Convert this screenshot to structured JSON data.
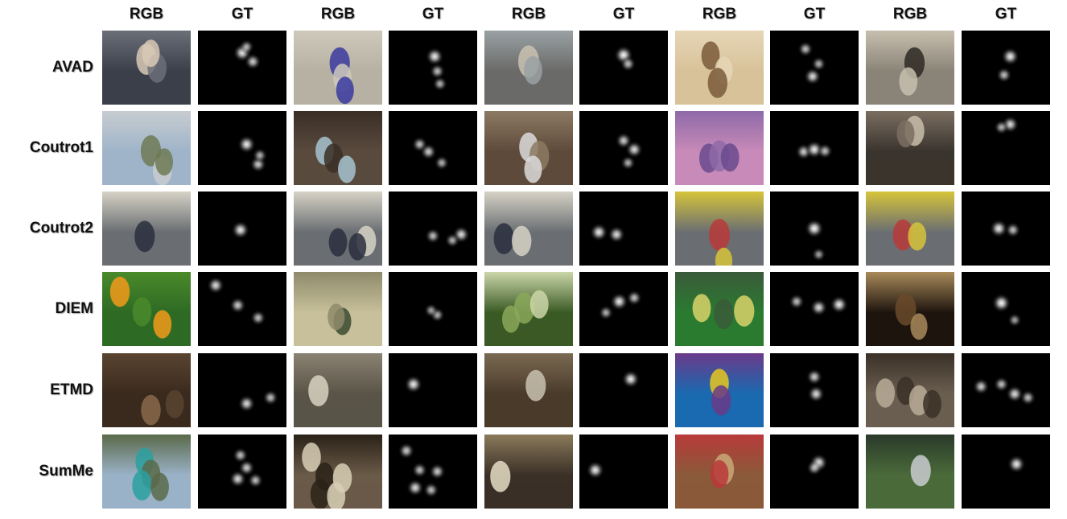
{
  "columns": [
    "RGB",
    "GT",
    "RGB",
    "GT",
    "RGB",
    "GT",
    "RGB",
    "GT",
    "RGB",
    "GT"
  ],
  "rows": [
    {
      "label": "AVAD",
      "frames": [
        {
          "scene": "three-people-news-desk",
          "palette": [
            "#3a3f4a",
            "#d8c9b6",
            "#6b6f78"
          ],
          "fixations": [
            [
              0.5,
              0.3,
              0.9
            ],
            [
              0.62,
              0.42,
              0.7
            ],
            [
              0.55,
              0.22,
              0.5
            ]
          ]
        },
        {
          "scene": "street-ball-player",
          "palette": [
            "#b7b1a3",
            "#3a3aa0",
            "#cfc9bb"
          ],
          "fixations": [
            [
              0.52,
              0.35,
              0.9
            ],
            [
              0.55,
              0.55,
              0.6
            ],
            [
              0.58,
              0.72,
              0.5
            ]
          ]
        },
        {
          "scene": "man-with-cello",
          "palette": [
            "#6a6a68",
            "#c9c2b2",
            "#9aa1a4"
          ],
          "fixations": [
            [
              0.5,
              0.33,
              1.0
            ],
            [
              0.55,
              0.45,
              0.6
            ]
          ]
        },
        {
          "scene": "dog-and-toy-floor",
          "palette": [
            "#d8c29a",
            "#7a5a3a",
            "#e6d6b6"
          ],
          "fixations": [
            [
              0.4,
              0.25,
              0.6
            ],
            [
              0.55,
              0.45,
              0.5
            ],
            [
              0.48,
              0.62,
              0.8
            ]
          ]
        },
        {
          "scene": "guitar-player-street",
          "palette": [
            "#8a8478",
            "#2e2a24",
            "#c7bfae"
          ],
          "fixations": [
            [
              0.55,
              0.35,
              0.9
            ],
            [
              0.48,
              0.6,
              0.6
            ]
          ]
        }
      ]
    },
    {
      "label": "Coutrot1",
      "frames": [
        {
          "scene": "water-tower-field",
          "palette": [
            "#9fb4c9",
            "#6f7a55",
            "#c7ccd0"
          ],
          "fixations": [
            [
              0.55,
              0.45,
              0.9
            ],
            [
              0.68,
              0.72,
              0.7
            ],
            [
              0.7,
              0.6,
              0.5
            ]
          ]
        },
        {
          "scene": "industrial-pipe",
          "palette": [
            "#5a4a3e",
            "#a7c3d0",
            "#3a2e26"
          ],
          "fixations": [
            [
              0.35,
              0.45,
              0.6
            ],
            [
              0.45,
              0.55,
              0.7
            ],
            [
              0.6,
              0.7,
              0.5
            ]
          ]
        },
        {
          "scene": "kitchen-washing-machine",
          "palette": [
            "#5e4a3a",
            "#dadada",
            "#8c7a63"
          ],
          "fixations": [
            [
              0.5,
              0.4,
              0.7
            ],
            [
              0.62,
              0.52,
              0.8
            ],
            [
              0.55,
              0.7,
              0.5
            ]
          ]
        },
        {
          "scene": "lake-sunset",
          "palette": [
            "#c88ab8",
            "#6a4a8e",
            "#8e6aa8"
          ],
          "fixations": [
            [
              0.38,
              0.55,
              0.7
            ],
            [
              0.5,
              0.52,
              0.9
            ],
            [
              0.62,
              0.54,
              0.6
            ]
          ]
        },
        {
          "scene": "couple-sitting-room",
          "palette": [
            "#3a342e",
            "#c9beaa",
            "#7a6e60"
          ],
          "fixations": [
            [
              0.55,
              0.18,
              0.8
            ],
            [
              0.45,
              0.22,
              0.5
            ]
          ]
        }
      ]
    },
    {
      "label": "Coutrot2",
      "frames": [
        {
          "scene": "panel-desk-four",
          "palette": [
            "#6a6e72",
            "#2a2f3e",
            "#d6d2c6"
          ],
          "fixations": [
            [
              0.48,
              0.52,
              0.9
            ]
          ]
        },
        {
          "scene": "panel-desk-four",
          "palette": [
            "#6a6e72",
            "#2a2f3e",
            "#d6d2c6"
          ],
          "fixations": [
            [
              0.5,
              0.6,
              0.6
            ],
            [
              0.82,
              0.58,
              0.8
            ],
            [
              0.72,
              0.66,
              0.5
            ]
          ]
        },
        {
          "scene": "panel-desk-four",
          "palette": [
            "#6a6e72",
            "#2a2f3e",
            "#d6d2c6"
          ],
          "fixations": [
            [
              0.22,
              0.55,
              0.9
            ],
            [
              0.42,
              0.58,
              0.8
            ]
          ]
        },
        {
          "scene": "panel-desk-colored",
          "palette": [
            "#6a6e72",
            "#b83a3a",
            "#d6c43a"
          ],
          "fixations": [
            [
              0.5,
              0.5,
              1.0
            ],
            [
              0.55,
              0.85,
              0.4
            ]
          ]
        },
        {
          "scene": "panel-desk-colored",
          "palette": [
            "#6a6e72",
            "#b83a3a",
            "#d6c43a"
          ],
          "fixations": [
            [
              0.42,
              0.5,
              0.9
            ],
            [
              0.58,
              0.52,
              0.6
            ]
          ]
        }
      ]
    },
    {
      "label": "DIEM",
      "frames": [
        {
          "scene": "orange-flowers",
          "palette": [
            "#2e6a24",
            "#f29a1a",
            "#4a8a2a"
          ],
          "fixations": [
            [
              0.2,
              0.18,
              0.8
            ],
            [
              0.45,
              0.45,
              0.7
            ],
            [
              0.68,
              0.62,
              0.6
            ]
          ]
        },
        {
          "scene": "gym-basketball",
          "palette": [
            "#c7c09a",
            "#3a4a30",
            "#8e8a6a"
          ],
          "fixations": [
            [
              0.55,
              0.58,
              0.5
            ],
            [
              0.48,
              0.52,
              0.4
            ]
          ]
        },
        {
          "scene": "bird-in-tree",
          "palette": [
            "#3a5a24",
            "#8aa85a",
            "#cbd6a8"
          ],
          "fixations": [
            [
              0.45,
              0.4,
              0.9
            ],
            [
              0.62,
              0.35,
              0.6
            ],
            [
              0.3,
              0.55,
              0.5
            ]
          ]
        },
        {
          "scene": "table-tennis-hall",
          "palette": [
            "#2a7a30",
            "#d9d36a",
            "#3a5a3a"
          ],
          "fixations": [
            [
              0.3,
              0.4,
              0.6
            ],
            [
              0.55,
              0.48,
              0.8
            ],
            [
              0.78,
              0.44,
              0.9
            ]
          ]
        },
        {
          "scene": "dark-crowd-hall",
          "palette": [
            "#1e140e",
            "#6a4a2a",
            "#a88a5a"
          ],
          "fixations": [
            [
              0.45,
              0.42,
              1.0
            ],
            [
              0.6,
              0.65,
              0.4
            ]
          ]
        }
      ]
    },
    {
      "label": "ETMD",
      "frames": [
        {
          "scene": "dark-hallway-people",
          "palette": [
            "#3a2a1e",
            "#8a6a4a",
            "#5a4430"
          ],
          "fixations": [
            [
              0.55,
              0.68,
              0.8
            ],
            [
              0.82,
              0.6,
              0.6
            ]
          ]
        },
        {
          "scene": "street-cars-runner",
          "palette": [
            "#5a5448",
            "#d8d2c2",
            "#8a8272"
          ],
          "fixations": [
            [
              0.28,
              0.42,
              0.9
            ]
          ]
        },
        {
          "scene": "shop-counter",
          "palette": [
            "#4a3a2a",
            "#c9c2b0",
            "#7a6a52"
          ],
          "fixations": [
            [
              0.58,
              0.35,
              0.9
            ]
          ]
        },
        {
          "scene": "cartoon-fish-tank",
          "palette": [
            "#1a6ab0",
            "#e6c81e",
            "#6a3a8a"
          ],
          "fixations": [
            [
              0.5,
              0.32,
              0.7
            ],
            [
              0.52,
              0.55,
              0.8
            ]
          ]
        },
        {
          "scene": "busy-market-square",
          "palette": [
            "#6a5e50",
            "#b8ac98",
            "#3a3026"
          ],
          "fixations": [
            [
              0.22,
              0.45,
              0.7
            ],
            [
              0.45,
              0.42,
              0.6
            ],
            [
              0.6,
              0.55,
              0.8
            ],
            [
              0.75,
              0.6,
              0.6
            ]
          ]
        }
      ]
    },
    {
      "label": "SumMe",
      "frames": [
        {
          "scene": "mountain-lake-valley",
          "palette": [
            "#9ab2c8",
            "#2aa0a0",
            "#5a6a4a"
          ],
          "fixations": [
            [
              0.48,
              0.28,
              0.6
            ],
            [
              0.55,
              0.45,
              0.7
            ],
            [
              0.45,
              0.6,
              0.8
            ],
            [
              0.65,
              0.62,
              0.6
            ]
          ]
        },
        {
          "scene": "bike-fisheye",
          "palette": [
            "#6a5a48",
            "#d8cfb6",
            "#2a2218"
          ],
          "fixations": [
            [
              0.2,
              0.22,
              0.7
            ],
            [
              0.35,
              0.48,
              0.6
            ],
            [
              0.55,
              0.5,
              0.7
            ],
            [
              0.3,
              0.72,
              0.8
            ],
            [
              0.48,
              0.75,
              0.6
            ]
          ]
        },
        {
          "scene": "chef-grill",
          "palette": [
            "#3a3026",
            "#e6ddc6",
            "#8a7a5a"
          ],
          "fixations": [
            [
              0.18,
              0.48,
              0.9
            ]
          ]
        },
        {
          "scene": "kids-truck-yard",
          "palette": [
            "#8a5a3a",
            "#c9a878",
            "#b83a3a"
          ],
          "fixations": [
            [
              0.55,
              0.38,
              0.9
            ],
            [
              0.5,
              0.45,
              0.6
            ]
          ]
        },
        {
          "scene": "waterfall-bridge",
          "palette": [
            "#4a6a3a",
            "#c9ccd0",
            "#2a3a2a"
          ],
          "fixations": [
            [
              0.62,
              0.4,
              0.9
            ]
          ]
        }
      ]
    }
  ]
}
